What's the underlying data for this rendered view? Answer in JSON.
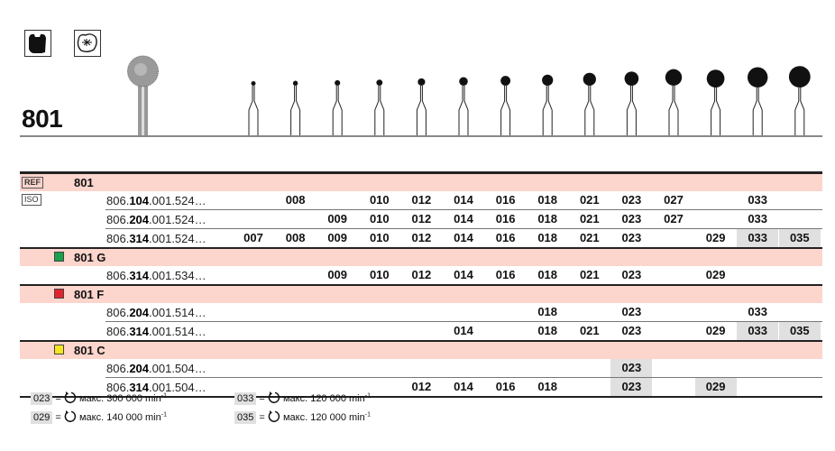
{
  "title": "801",
  "icons": [
    "tooth-crown-icon",
    "occlusal-surface-icon"
  ],
  "tags": {
    "ref": "REF",
    "iso": "ISO"
  },
  "iso_sizes": [
    "007",
    "008",
    "009",
    "010",
    "012",
    "014",
    "016",
    "018",
    "021",
    "023",
    "027",
    "029",
    "033",
    "035"
  ],
  "groups": [
    {
      "label": "801",
      "tag": "ref",
      "color": null,
      "rows": [
        {
          "ref_pre": "806.",
          "ref_bold": "104",
          "ref_post": ".001.524…",
          "values": [
            null,
            "008",
            null,
            "010",
            "012",
            "014",
            "016",
            "018",
            "021",
            "023",
            "027",
            null,
            "033",
            null
          ],
          "highlight": []
        },
        {
          "ref_pre": "806.",
          "ref_bold": "204",
          "ref_post": ".001.524…",
          "values": [
            null,
            null,
            "009",
            "010",
            "012",
            "014",
            "016",
            "018",
            "021",
            "023",
            "027",
            null,
            "033",
            null
          ],
          "highlight": []
        },
        {
          "ref_pre": "806.",
          "ref_bold": "314",
          "ref_post": ".001.524…",
          "values": [
            "007",
            "008",
            "009",
            "010",
            "012",
            "014",
            "016",
            "018",
            "021",
            "023",
            null,
            "029",
            "033",
            "035"
          ],
          "highlight": [
            "033",
            "035"
          ]
        }
      ]
    },
    {
      "label": "801 G",
      "color": "#1aa14a",
      "rows": [
        {
          "ref_pre": "806.",
          "ref_bold": "314",
          "ref_post": ".001.534…",
          "values": [
            null,
            null,
            "009",
            "010",
            "012",
            "014",
            "016",
            "018",
            "021",
            "023",
            null,
            "029",
            null,
            null
          ],
          "highlight": []
        }
      ]
    },
    {
      "label": "801 F",
      "color": "#e3222b",
      "rows": [
        {
          "ref_pre": "806.",
          "ref_bold": "204",
          "ref_post": ".001.514…",
          "values": [
            null,
            null,
            null,
            null,
            null,
            null,
            null,
            "018",
            null,
            "023",
            null,
            null,
            "033",
            null
          ],
          "highlight": []
        },
        {
          "ref_pre": "806.",
          "ref_bold": "314",
          "ref_post": ".001.514…",
          "values": [
            null,
            null,
            null,
            null,
            null,
            "014",
            null,
            "018",
            "021",
            "023",
            null,
            "029",
            "033",
            "035"
          ],
          "highlight": [
            "033",
            "035"
          ]
        }
      ]
    },
    {
      "label": "801 C",
      "color": "#f5e61e",
      "rows": [
        {
          "ref_pre": "806.",
          "ref_bold": "204",
          "ref_post": ".001.504…",
          "values": [
            null,
            null,
            null,
            null,
            null,
            null,
            null,
            null,
            null,
            "023",
            null,
            null,
            null,
            null
          ],
          "highlight": [
            "023"
          ]
        },
        {
          "ref_pre": "806.",
          "ref_bold": "314",
          "ref_post": ".001.504…",
          "values": [
            null,
            null,
            null,
            null,
            "012",
            "014",
            "016",
            "018",
            null,
            "023",
            null,
            "029",
            null,
            null
          ],
          "highlight": [
            "023",
            "029"
          ]
        }
      ]
    }
  ],
  "legend": [
    {
      "code": "023",
      "text": "макс. 300 000 min",
      "sup": "-1"
    },
    {
      "code": "029",
      "text": "макс. 140 000 min",
      "sup": "-1"
    },
    {
      "code": "033",
      "text": "макс. 120 000 min",
      "sup": "-1"
    },
    {
      "code": "035",
      "text": "макс. 120 000 min",
      "sup": "-1"
    }
  ]
}
